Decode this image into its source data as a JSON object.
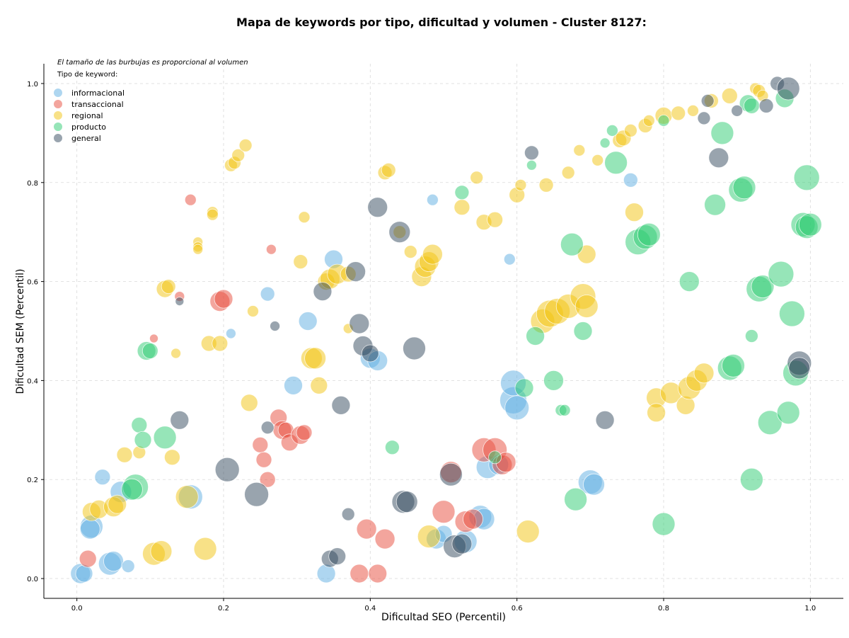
{
  "chart_data": {
    "type": "scatter",
    "title": "Mapa de keywords por tipo, dificultad y volumen - Cluster 8127:",
    "xlabel": "Dificultad SEO (Percentil)",
    "ylabel": "Dificultad SEM (Percentil)",
    "xlim": [
      -0.045,
      1.045
    ],
    "ylim": [
      -0.04,
      1.04
    ],
    "xticks": [
      "0.0",
      "0.2",
      "0.4",
      "0.6",
      "0.8",
      "1.0"
    ],
    "yticks": [
      "0.0",
      "0.2",
      "0.4",
      "0.6",
      "0.8",
      "1.0"
    ],
    "grid": true,
    "note": "El tamaño de las burbujas es proporcional al volumen",
    "legend_title": "Tipo de keyword:",
    "legend_position": "top-left",
    "series": [
      {
        "name": "informacional",
        "color": "#5DADE2",
        "points": [
          [
            0.005,
            0.01,
            14
          ],
          [
            0.01,
            0.01,
            12
          ],
          [
            0.02,
            0.105,
            16
          ],
          [
            0.018,
            0.1,
            14
          ],
          [
            0.045,
            0.03,
            16
          ],
          [
            0.05,
            0.035,
            14
          ],
          [
            0.07,
            0.025,
            9
          ],
          [
            0.035,
            0.205,
            11
          ],
          [
            0.06,
            0.175,
            15
          ],
          [
            0.155,
            0.165,
            17
          ],
          [
            0.21,
            0.495,
            7
          ],
          [
            0.26,
            0.575,
            10
          ],
          [
            0.295,
            0.39,
            13
          ],
          [
            0.315,
            0.52,
            13
          ],
          [
            0.35,
            0.645,
            13
          ],
          [
            0.34,
            0.01,
            13
          ],
          [
            0.4,
            0.445,
            14
          ],
          [
            0.41,
            0.44,
            14
          ],
          [
            0.485,
            0.765,
            8
          ],
          [
            0.49,
            0.08,
            14
          ],
          [
            0.5,
            0.09,
            12
          ],
          [
            0.53,
            0.075,
            16
          ],
          [
            0.55,
            0.125,
            16
          ],
          [
            0.555,
            0.12,
            15
          ],
          [
            0.56,
            0.225,
            16
          ],
          [
            0.575,
            0.23,
            14
          ],
          [
            0.59,
            0.645,
            8
          ],
          [
            0.595,
            0.36,
            19
          ],
          [
            0.6,
            0.345,
            17
          ],
          [
            0.595,
            0.395,
            18
          ],
          [
            0.7,
            0.195,
            17
          ],
          [
            0.705,
            0.19,
            15
          ],
          [
            0.755,
            0.805,
            10
          ]
        ]
      },
      {
        "name": "transaccional",
        "color": "#E74C3C",
        "points": [
          [
            0.015,
            0.04,
            12
          ],
          [
            0.105,
            0.485,
            6
          ],
          [
            0.14,
            0.57,
            7
          ],
          [
            0.155,
            0.765,
            8
          ],
          [
            0.195,
            0.56,
            14
          ],
          [
            0.2,
            0.565,
            13
          ],
          [
            0.25,
            0.27,
            11
          ],
          [
            0.255,
            0.24,
            11
          ],
          [
            0.26,
            0.2,
            11
          ],
          [
            0.265,
            0.665,
            7
          ],
          [
            0.275,
            0.325,
            12
          ],
          [
            0.28,
            0.3,
            13
          ],
          [
            0.285,
            0.3,
            11
          ],
          [
            0.29,
            0.275,
            12
          ],
          [
            0.305,
            0.29,
            13
          ],
          [
            0.31,
            0.295,
            11
          ],
          [
            0.385,
            0.01,
            13
          ],
          [
            0.395,
            0.1,
            14
          ],
          [
            0.41,
            0.01,
            13
          ],
          [
            0.42,
            0.08,
            14
          ],
          [
            0.5,
            0.135,
            16
          ],
          [
            0.51,
            0.215,
            15
          ],
          [
            0.53,
            0.115,
            15
          ],
          [
            0.54,
            0.12,
            14
          ],
          [
            0.555,
            0.26,
            17
          ],
          [
            0.57,
            0.26,
            17
          ],
          [
            0.58,
            0.23,
            14
          ],
          [
            0.585,
            0.235,
            14
          ]
        ]
      },
      {
        "name": "regional",
        "color": "#F1C40F",
        "points": [
          [
            0.02,
            0.135,
            13
          ],
          [
            0.03,
            0.14,
            13
          ],
          [
            0.05,
            0.145,
            14
          ],
          [
            0.055,
            0.15,
            13
          ],
          [
            0.065,
            0.25,
            11
          ],
          [
            0.085,
            0.255,
            9
          ],
          [
            0.105,
            0.05,
            16
          ],
          [
            0.115,
            0.055,
            15
          ],
          [
            0.12,
            0.585,
            12
          ],
          [
            0.125,
            0.59,
            10
          ],
          [
            0.13,
            0.245,
            11
          ],
          [
            0.135,
            0.455,
            7
          ],
          [
            0.15,
            0.165,
            16
          ],
          [
            0.165,
            0.68,
            7
          ],
          [
            0.165,
            0.67,
            7
          ],
          [
            0.165,
            0.665,
            7
          ],
          [
            0.175,
            0.06,
            16
          ],
          [
            0.18,
            0.475,
            11
          ],
          [
            0.195,
            0.475,
            11
          ],
          [
            0.185,
            0.74,
            8
          ],
          [
            0.185,
            0.735,
            8
          ],
          [
            0.21,
            0.835,
            9
          ],
          [
            0.215,
            0.84,
            9
          ],
          [
            0.22,
            0.855,
            9
          ],
          [
            0.23,
            0.875,
            9
          ],
          [
            0.235,
            0.355,
            12
          ],
          [
            0.24,
            0.54,
            8
          ],
          [
            0.31,
            0.73,
            8
          ],
          [
            0.305,
            0.64,
            10
          ],
          [
            0.32,
            0.445,
            15
          ],
          [
            0.325,
            0.445,
            15
          ],
          [
            0.33,
            0.39,
            12
          ],
          [
            0.34,
            0.6,
            12
          ],
          [
            0.345,
            0.605,
            14
          ],
          [
            0.355,
            0.615,
            14
          ],
          [
            0.37,
            0.505,
            7
          ],
          [
            0.37,
            0.615,
            11
          ],
          [
            0.42,
            0.82,
            10
          ],
          [
            0.425,
            0.825,
            10
          ],
          [
            0.48,
            0.085,
            16
          ],
          [
            0.47,
            0.61,
            14
          ],
          [
            0.475,
            0.63,
            15
          ],
          [
            0.48,
            0.64,
            14
          ],
          [
            0.485,
            0.655,
            14
          ],
          [
            0.44,
            0.7,
            9
          ],
          [
            0.455,
            0.66,
            9
          ],
          [
            0.525,
            0.75,
            11
          ],
          [
            0.545,
            0.81,
            9
          ],
          [
            0.555,
            0.72,
            11
          ],
          [
            0.57,
            0.725,
            11
          ],
          [
            0.6,
            0.775,
            11
          ],
          [
            0.605,
            0.795,
            8
          ],
          [
            0.615,
            0.095,
            16
          ],
          [
            0.635,
            0.52,
            17
          ],
          [
            0.645,
            0.535,
            19
          ],
          [
            0.655,
            0.54,
            18
          ],
          [
            0.67,
            0.55,
            17
          ],
          [
            0.64,
            0.795,
            10
          ],
          [
            0.67,
            0.82,
            9
          ],
          [
            0.69,
            0.57,
            18
          ],
          [
            0.695,
            0.55,
            16
          ],
          [
            0.695,
            0.655,
            13
          ],
          [
            0.685,
            0.865,
            8
          ],
          [
            0.71,
            0.845,
            8
          ],
          [
            0.74,
            0.885,
            10
          ],
          [
            0.745,
            0.89,
            11
          ],
          [
            0.755,
            0.905,
            9
          ],
          [
            0.76,
            0.74,
            13
          ],
          [
            0.775,
            0.915,
            10
          ],
          [
            0.78,
            0.925,
            8
          ],
          [
            0.79,
            0.365,
            14
          ],
          [
            0.79,
            0.335,
            13
          ],
          [
            0.8,
            0.935,
            12
          ],
          [
            0.81,
            0.375,
            15
          ],
          [
            0.82,
            0.94,
            10
          ],
          [
            0.83,
            0.35,
            13
          ],
          [
            0.835,
            0.385,
            16
          ],
          [
            0.845,
            0.4,
            15
          ],
          [
            0.855,
            0.415,
            14
          ],
          [
            0.84,
            0.945,
            8
          ],
          [
            0.865,
            0.965,
            10
          ],
          [
            0.89,
            0.975,
            11
          ],
          [
            0.925,
            0.99,
            8
          ],
          [
            0.93,
            0.985,
            9
          ],
          [
            0.935,
            0.975,
            8
          ]
        ]
      },
      {
        "name": "producto",
        "color": "#2ECC71",
        "points": [
          [
            0.08,
            0.185,
            18
          ],
          [
            0.075,
            0.18,
            15
          ],
          [
            0.085,
            0.31,
            11
          ],
          [
            0.09,
            0.28,
            12
          ],
          [
            0.095,
            0.46,
            13
          ],
          [
            0.1,
            0.46,
            11
          ],
          [
            0.12,
            0.285,
            16
          ],
          [
            0.43,
            0.265,
            10
          ],
          [
            0.525,
            0.78,
            10
          ],
          [
            0.57,
            0.245,
            9
          ],
          [
            0.61,
            0.385,
            13
          ],
          [
            0.62,
            0.835,
            7
          ],
          [
            0.625,
            0.49,
            13
          ],
          [
            0.65,
            0.4,
            14
          ],
          [
            0.66,
            0.34,
            8
          ],
          [
            0.665,
            0.34,
            8
          ],
          [
            0.675,
            0.675,
            16
          ],
          [
            0.68,
            0.16,
            16
          ],
          [
            0.69,
            0.5,
            13
          ],
          [
            0.72,
            0.88,
            7
          ],
          [
            0.73,
            0.905,
            8
          ],
          [
            0.735,
            0.84,
            16
          ],
          [
            0.765,
            0.68,
            18
          ],
          [
            0.775,
            0.69,
            17
          ],
          [
            0.78,
            0.695,
            16
          ],
          [
            0.8,
            0.925,
            8
          ],
          [
            0.8,
            0.11,
            16
          ],
          [
            0.835,
            0.6,
            14
          ],
          [
            0.87,
            0.755,
            15
          ],
          [
            0.88,
            0.9,
            16
          ],
          [
            0.89,
            0.425,
            17
          ],
          [
            0.895,
            0.43,
            16
          ],
          [
            0.905,
            0.785,
            17
          ],
          [
            0.91,
            0.79,
            16
          ],
          [
            0.915,
            0.96,
            12
          ],
          [
            0.92,
            0.955,
            11
          ],
          [
            0.92,
            0.2,
            16
          ],
          [
            0.93,
            0.585,
            18
          ],
          [
            0.935,
            0.59,
            16
          ],
          [
            0.945,
            0.315,
            17
          ],
          [
            0.96,
            0.615,
            18
          ],
          [
            0.965,
            0.97,
            13
          ],
          [
            0.97,
            0.335,
            16
          ],
          [
            0.975,
            0.535,
            18
          ],
          [
            0.98,
            0.415,
            18
          ],
          [
            0.99,
            0.715,
            17
          ],
          [
            0.995,
            0.71,
            16
          ],
          [
            0.995,
            0.81,
            18
          ],
          [
            1.0,
            0.715,
            16
          ],
          [
            0.92,
            0.49,
            9
          ]
        ]
      },
      {
        "name": "general",
        "color": "#34495E",
        "points": [
          [
            0.14,
            0.56,
            6
          ],
          [
            0.14,
            0.32,
            13
          ],
          [
            0.205,
            0.22,
            17
          ],
          [
            0.245,
            0.17,
            17
          ],
          [
            0.26,
            0.305,
            9
          ],
          [
            0.27,
            0.51,
            7
          ],
          [
            0.335,
            0.58,
            13
          ],
          [
            0.345,
            0.04,
            12
          ],
          [
            0.355,
            0.045,
            12
          ],
          [
            0.36,
            0.35,
            13
          ],
          [
            0.37,
            0.13,
            9
          ],
          [
            0.38,
            0.62,
            14
          ],
          [
            0.385,
            0.515,
            14
          ],
          [
            0.39,
            0.47,
            14
          ],
          [
            0.4,
            0.455,
            12
          ],
          [
            0.41,
            0.75,
            14
          ],
          [
            0.44,
            0.7,
            15
          ],
          [
            0.445,
            0.155,
            16
          ],
          [
            0.45,
            0.155,
            15
          ],
          [
            0.46,
            0.465,
            16
          ],
          [
            0.51,
            0.21,
            16
          ],
          [
            0.515,
            0.065,
            16
          ],
          [
            0.525,
            0.07,
            14
          ],
          [
            0.62,
            0.86,
            10
          ],
          [
            0.72,
            0.32,
            13
          ],
          [
            0.855,
            0.93,
            9
          ],
          [
            0.86,
            0.965,
            9
          ],
          [
            0.875,
            0.85,
            14
          ],
          [
            0.9,
            0.945,
            8
          ],
          [
            0.94,
            0.955,
            10
          ],
          [
            0.955,
            1.0,
            10
          ],
          [
            0.97,
            0.99,
            16
          ],
          [
            0.985,
            0.435,
            17
          ],
          [
            0.985,
            0.425,
            15
          ]
        ]
      }
    ]
  }
}
